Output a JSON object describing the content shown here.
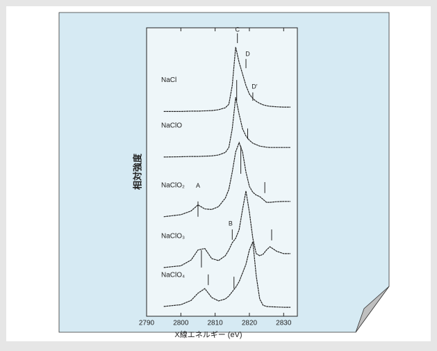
{
  "chart_data": {
    "type": "line",
    "xlabel": "X線エネルギー (eV)",
    "ylabel": "相対強度",
    "xlim": [
      2790,
      2834
    ],
    "xticks": [
      2790,
      2800,
      2810,
      2820,
      2830
    ],
    "ylim": [
      0,
      100
    ],
    "x": [
      2795,
      2800,
      2803,
      2805,
      2807,
      2809,
      2811,
      2813,
      2814,
      2815,
      2816,
      2817,
      2818,
      2819,
      2820,
      2821,
      2822,
      2823,
      2824,
      2825,
      2826,
      2828,
      2830,
      2832
    ],
    "series": [
      {
        "name": "NaCl",
        "color": "#222222",
        "values": [
          71.0,
          71.0,
          71.1,
          71.1,
          71.2,
          71.3,
          71.6,
          72.3,
          73.5,
          80,
          93.3,
          88,
          84,
          80,
          77,
          75.5,
          74.5,
          73.8,
          73.3,
          73,
          72.8,
          72.6,
          72.5,
          72.5
        ]
      },
      {
        "name": "NaClO",
        "color": "#222222",
        "values": [
          55.2,
          55.3,
          55.4,
          55.4,
          55.5,
          55.6,
          55.9,
          56.8,
          58.5,
          65,
          75.9,
          70,
          65,
          62.5,
          61,
          60,
          59.5,
          59,
          58.8,
          58.6,
          58.5,
          58.5,
          58.5,
          58.5
        ]
      },
      {
        "name": "NaClO₂",
        "color": "#222222",
        "values": [
          34.5,
          35.2,
          36.5,
          38.6,
          37.2,
          37,
          38,
          41,
          44,
          50,
          57,
          60.2,
          57,
          50,
          45,
          43,
          42,
          41.5,
          40.5,
          39.5,
          39.5,
          39.7,
          39.8,
          39.8
        ]
      },
      {
        "name": "NaClO₃",
        "color": "#222222",
        "values": [
          16.9,
          17.5,
          19.5,
          23,
          23.5,
          20,
          19.3,
          21,
          23,
          25.5,
          27,
          30,
          37,
          43.4,
          36,
          27,
          21.7,
          21,
          21.5,
          23,
          24.1,
          22.5,
          21.7,
          21.7
        ]
      },
      {
        "name": "NaClO₄",
        "color": "#222222",
        "values": [
          3.4,
          4.0,
          5.5,
          8,
          9.6,
          6.5,
          5.3,
          6,
          7,
          8.5,
          10,
          12,
          15,
          18,
          23,
          25.8,
          14,
          6,
          3.8,
          3.4,
          3.3,
          3.2,
          3.1,
          3.1
        ]
      }
    ],
    "markers": [
      {
        "x": 2816.5,
        "y": [
          98.1,
          94.7
        ]
      },
      {
        "x": 2819,
        "y": [
          89.2,
          86.0
        ]
      },
      {
        "x": 2821,
        "y": [
          77.6,
          74.7
        ]
      },
      {
        "x": 2816.3,
        "y": [
          81.9,
          74.7
        ]
      },
      {
        "x": 2819.5,
        "y": [
          65.1,
          61.4
        ]
      },
      {
        "x": 2817.5,
        "y": [
          59.0,
          49.4
        ]
      },
      {
        "x": 2824.5,
        "y": [
          46.5,
          42.7
        ]
      },
      {
        "x": 2805,
        "y": [
          39.8,
          34.5
        ]
      },
      {
        "x": 2815,
        "y": [
          30.1,
          26.5
        ]
      },
      {
        "x": 2826.5,
        "y": [
          30.1,
          26.3
        ]
      },
      {
        "x": 2806,
        "y": [
          22.9,
          16.9
        ]
      },
      {
        "x": 2808,
        "y": [
          14.5,
          10.8
        ]
      },
      {
        "x": 2815.5,
        "y": [
          13.7,
          9.6
        ]
      }
    ],
    "annotations": [
      {
        "text": "C",
        "x": 2816.5,
        "y": 99.2
      },
      {
        "text": "D",
        "x": 2819.5,
        "y": 90.8
      },
      {
        "text": "D′",
        "x": 2821.5,
        "y": 79.5
      },
      {
        "text": "A",
        "x": 2805,
        "y": 45.1
      },
      {
        "text": "B",
        "x": 2814.5,
        "y": 32.0
      }
    ]
  }
}
